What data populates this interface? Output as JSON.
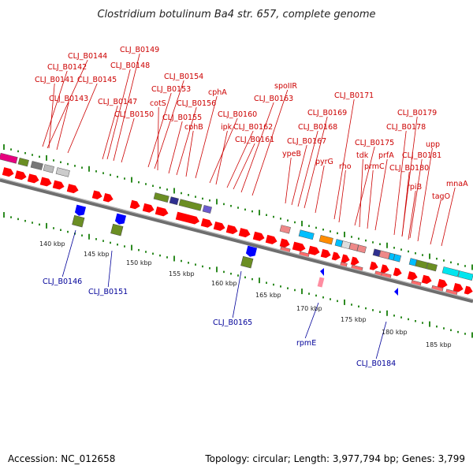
{
  "title": "Clostridium botulinum Ba4 str. 657, complete genome",
  "accession": "Accession: NC_012658",
  "topology": "Topology: circular; Length: 3,977,794 bp; Genes: 3,799",
  "colors": {
    "gene_forward": "#ff0000",
    "gene_reverse": "#0000ff",
    "label_top": "#cc0000",
    "label_bottom": "#000099",
    "cog_green": "#2e8b22",
    "backbone": "#888888"
  },
  "ticks": [
    "140 kbp",
    "145 kbp",
    "150 kbp",
    "155 kbp",
    "160 kbp",
    "165 kbp",
    "170 kbp",
    "175 kbp",
    "180 kbp",
    "185 kbp"
  ],
  "top_labels": [
    "CLJ_B0144",
    "CLJ_B0142",
    "CLJ_B0141",
    "CLJ_B0143",
    "CLJ_B0145",
    "CLJ_B0149",
    "CLJ_B0148",
    "CLJ_B0147",
    "CLJ_B0150",
    "CLJ_B0154",
    "CLJ_B0153",
    "cotS",
    "CLJ_B0155",
    "CLJ_B0156",
    "cphB",
    "cphA",
    "CLJ_B0160",
    "ipk",
    "CLJ_B0162",
    "CLJ_B0161",
    "spoIIR",
    "CLJ_B0163",
    "CLJ_B0169",
    "CLJ_B0168",
    "CLJ_B0167",
    "ypeB",
    "pyrG",
    "CLJ_B0171",
    "rho",
    "CLJ_B0175",
    "tdk",
    "prmC",
    "prfA",
    "CLJ_B0179",
    "CLJ_B0178",
    "CLJ_B0181",
    "CLJ_B0180",
    "upp",
    "rpiB",
    "mnaA",
    "tagO"
  ],
  "bottom_labels": [
    "CLJ_B0146",
    "CLJ_B0151",
    "CLJ_B0165",
    "rpmE",
    "CLJ_B0184"
  ]
}
